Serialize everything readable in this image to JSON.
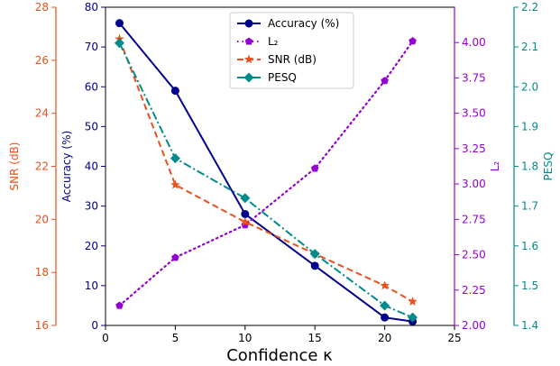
{
  "chart_data": {
    "type": "line",
    "xlabel": "Confidence κ",
    "xlim": [
      0,
      25
    ],
    "xticks": [
      "0",
      "5",
      "10",
      "15",
      "20",
      "25"
    ],
    "axes": {
      "snr": {
        "label": "SNR (dB)",
        "color": "#e8501c",
        "ylim": [
          16,
          28
        ],
        "ticks": [
          "16",
          "18",
          "20",
          "22",
          "24",
          "26",
          "28"
        ]
      },
      "accuracy": {
        "label": "Accuracy (%)",
        "color": "#00008b",
        "ylim": [
          0,
          80
        ],
        "ticks": [
          "0",
          "10",
          "20",
          "30",
          "40",
          "50",
          "60",
          "70",
          "80"
        ]
      },
      "l2": {
        "label": "L₂",
        "color": "#9400d3",
        "ylim": [
          2.0,
          4.25
        ],
        "ticks": [
          "2.00",
          "2.25",
          "2.50",
          "2.75",
          "3.00",
          "3.25",
          "3.50",
          "3.75",
          "4.00"
        ]
      },
      "pesq": {
        "label": "PESQ",
        "color": "#008b8b",
        "ylim": [
          1.4,
          2.2
        ],
        "ticks": [
          "1.4",
          "1.5",
          "1.6",
          "1.7",
          "1.8",
          "1.9",
          "2.0",
          "2.1",
          "2.2"
        ]
      }
    },
    "series": [
      {
        "name": "Accuracy (%)",
        "axis": "accuracy",
        "color": "#00008b",
        "linestyle": "solid",
        "marker": "circle",
        "x": [
          1,
          5,
          10,
          15,
          20,
          22
        ],
        "y": [
          76,
          59,
          28,
          15,
          2,
          1
        ]
      },
      {
        "name": "L₂",
        "axis": "l2",
        "color": "#9400d3",
        "linestyle": "dotted",
        "marker": "pentagon",
        "x": [
          1,
          5,
          10,
          15,
          20,
          22
        ],
        "y": [
          2.14,
          2.48,
          2.71,
          3.11,
          3.73,
          4.01
        ]
      },
      {
        "name": "SNR (dB)",
        "axis": "snr",
        "color": "#e8501c",
        "linestyle": "dashed",
        "marker": "star",
        "x": [
          1,
          5,
          10,
          15,
          20,
          22
        ],
        "y": [
          26.8,
          21.3,
          19.9,
          18.7,
          17.5,
          16.9
        ]
      },
      {
        "name": "PESQ",
        "axis": "pesq",
        "color": "#008b8b",
        "linestyle": "dashdot",
        "marker": "diamond",
        "x": [
          1,
          5,
          10,
          15,
          20,
          22
        ],
        "y": [
          2.11,
          1.82,
          1.72,
          1.58,
          1.45,
          1.42
        ]
      }
    ],
    "legend": {
      "position": "top-center"
    },
    "grid": false
  }
}
